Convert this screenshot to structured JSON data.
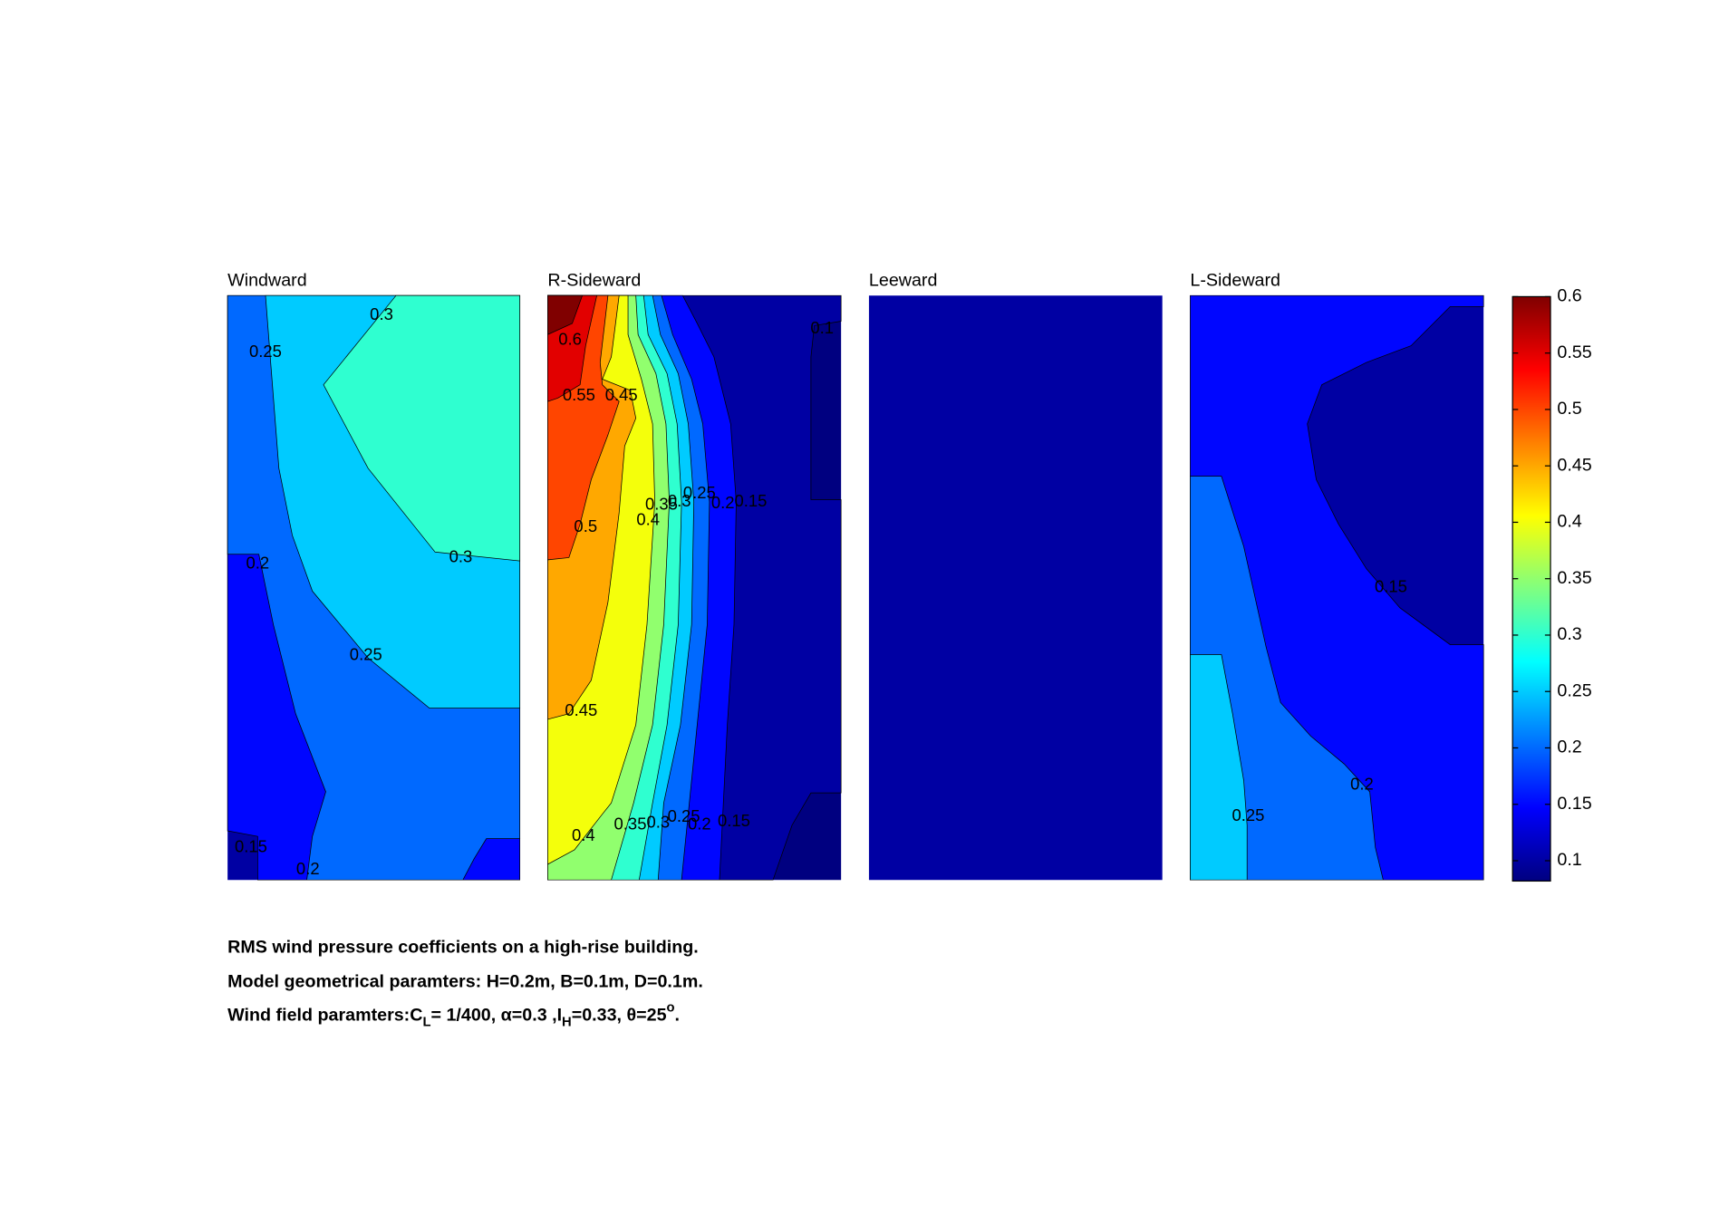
{
  "chart_data": [
    {
      "type": "contour",
      "title": "Windward",
      "bands": [
        0.1,
        0.15,
        0.2,
        0.25,
        0.3
      ],
      "contour_labels": [
        0.3,
        0.25,
        0.2,
        0.3,
        0.25,
        0.15,
        0.2
      ]
    },
    {
      "type": "contour",
      "title": "R-Sideward",
      "bands": [
        0.082,
        0.1,
        0.15,
        0.2,
        0.25,
        0.3,
        0.35,
        0.4,
        0.45,
        0.5,
        0.55,
        0.6
      ],
      "contour_labels": [
        0.6,
        0.55,
        0.45,
        0.5,
        0.4,
        0.35,
        0.3,
        0.25,
        0.2,
        0.15,
        0.1,
        0.45,
        0.4,
        0.35,
        0.3,
        0.25,
        0.2,
        0.15
      ]
    },
    {
      "type": "contour",
      "title": "Leeward",
      "bands": [
        0.1
      ],
      "contour_labels": []
    },
    {
      "type": "contour",
      "title": "L-Sideward",
      "bands": [
        0.1,
        0.15,
        0.2,
        0.25
      ],
      "contour_labels": [
        0.15,
        0.2,
        0.25
      ]
    },
    {
      "type": "colorbar",
      "ylim": [
        0.082,
        0.6
      ],
      "yticks": [
        0.1,
        0.15,
        0.2,
        0.25,
        0.3,
        0.35,
        0.4,
        0.45,
        0.5,
        0.55,
        0.6
      ]
    }
  ],
  "caption": {
    "lines": [
      "RMS wind pressure coefficients on a high-rise building.",
      "Model geometrical paramters: H=0.2m, B=0.1m, D=0.1m."
    ],
    "line3_parts": [
      "Wind field paramters:C",
      "L",
      "= 1/400, α=0.3 ,I",
      "H",
      "=0.33, θ=25",
      "o",
      "."
    ]
  }
}
